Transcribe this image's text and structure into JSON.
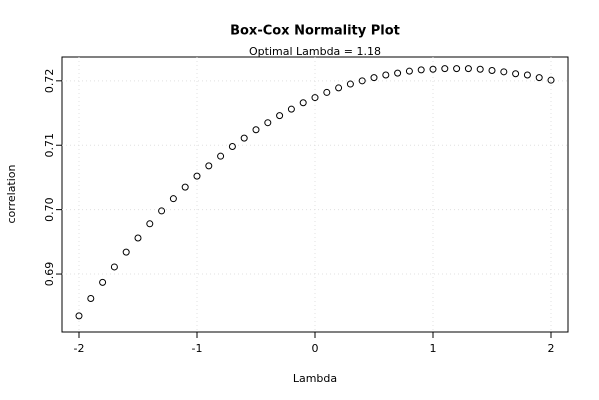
{
  "chart_data": {
    "type": "scatter",
    "title": "Box-Cox Normality Plot",
    "subtitle": "Optimal Lambda = 1.18",
    "x_label": "Lambda",
    "y_label": "correlation",
    "x": [
      -2,
      -1.9,
      -1.8,
      -1.7,
      -1.6,
      -1.5,
      -1.4,
      -1.3,
      -1.2,
      -1.1,
      -1,
      -0.9,
      -0.8,
      -0.7,
      -0.6,
      -0.5,
      -0.4,
      -0.3,
      -0.2,
      -0.1,
      0,
      0.1,
      0.2,
      0.3,
      0.4,
      0.5,
      0.6,
      0.7,
      0.8,
      0.9,
      1,
      1.1,
      1.2,
      1.3,
      1.4,
      1.5,
      1.6,
      1.7,
      1.8,
      1.9,
      2
    ],
    "values": [
      0.6835,
      0.6862,
      0.6887,
      0.6911,
      0.6934,
      0.6956,
      0.6978,
      0.6998,
      0.7017,
      0.7035,
      0.7052,
      0.7068,
      0.7083,
      0.7098,
      0.7111,
      0.7124,
      0.7135,
      0.7146,
      0.7156,
      0.7166,
      0.7174,
      0.7182,
      0.7189,
      0.7195,
      0.72,
      0.7205,
      0.7209,
      0.7212,
      0.7215,
      0.7217,
      0.7218,
      0.7219,
      0.7219,
      0.7219,
      0.7218,
      0.7216,
      0.7214,
      0.7211,
      0.7209,
      0.7205,
      0.7201
    ],
    "color": "#000000",
    "xlim": [
      -2.144,
      2.144
    ],
    "ylim": [
      0.681,
      0.7237
    ],
    "xticks": [
      -2,
      -1,
      0,
      1,
      2
    ],
    "yticks": [
      0.69,
      {
        "value": 0.7,
        "label": "0.70"
      },
      0.71,
      0.72
    ],
    "grid": true
  }
}
